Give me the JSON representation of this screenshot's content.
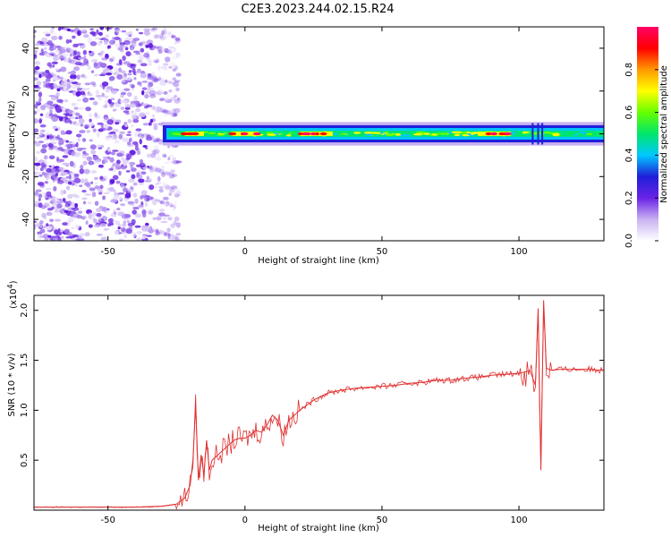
{
  "page_title": "C2E3.2023.244.02.15.R24",
  "chart_data": [
    {
      "type": "heatmap",
      "name": "spectrogram",
      "xlabel": "Height of straight line (km)",
      "ylabel": "Frequency (Hz)",
      "xlim": [
        -77,
        131
      ],
      "ylim": [
        -50,
        50
      ],
      "xticks": [
        -50,
        0,
        50,
        100
      ],
      "yticks": [
        -40,
        -20,
        0,
        20,
        40
      ],
      "colorbar": {
        "label": "Normalized spectral amplitude",
        "range": [
          0.0,
          1.0
        ],
        "ticks": [
          0.0,
          0.2,
          0.4,
          0.6,
          0.8
        ],
        "colormap": [
          "#ffffff",
          "#c9b2f2",
          "#6a22e6",
          "#1f1fd9",
          "#00c8ff",
          "#00e66b",
          "#66ff00",
          "#ffff00",
          "#ff9900",
          "#ff0000",
          "#ff0066"
        ]
      },
      "features": {
        "noise_region_km": [
          -77,
          -28
        ],
        "carrier_band_hz": [
          -3,
          3
        ],
        "peak_segments_km": [
          [
            -22,
            -15
          ],
          [
            -5,
            5
          ],
          [
            20,
            32
          ],
          [
            85,
            97
          ]
        ]
      },
      "grid": false
    },
    {
      "type": "line",
      "name": "snr",
      "xlabel": "Height of straight line (km)",
      "ylabel": "SNR (10 * v/v)",
      "yscale_label": "(x10",
      "yscale_exp": "4",
      "xlim": [
        -77,
        131
      ],
      "ylim": [
        0,
        2.15
      ],
      "xticks": [
        -50,
        0,
        50,
        100
      ],
      "yticks": [
        0.5,
        1.0,
        1.5,
        2.0
      ],
      "ytick_labels": [
        "0.5",
        "1.0",
        "1.5",
        "2.0"
      ],
      "color": "#e03030",
      "series": [
        {
          "x": [
            -77,
            -60,
            -40,
            -30,
            -25,
            -22,
            -20,
            -19,
            -18,
            -17,
            -16,
            -15,
            -14,
            -13,
            -12,
            -10,
            -8,
            -6,
            -4,
            -2,
            0,
            2,
            4,
            6,
            8,
            10,
            12,
            14,
            15,
            16,
            18,
            20,
            25,
            30,
            35,
            40,
            45,
            50,
            55,
            60,
            65,
            70,
            75,
            80,
            85,
            90,
            95,
            100,
            102,
            104,
            106,
            107,
            108,
            109,
            110,
            112,
            115,
            120,
            125,
            131
          ],
          "y": [
            0.03,
            0.03,
            0.03,
            0.04,
            0.06,
            0.12,
            0.25,
            0.5,
            1.05,
            0.3,
            0.55,
            0.35,
            0.7,
            0.4,
            0.5,
            0.55,
            0.6,
            0.65,
            0.7,
            0.72,
            0.72,
            0.75,
            0.8,
            0.78,
            0.85,
            0.95,
            0.9,
            0.75,
            0.82,
            0.9,
            0.95,
            1.0,
            1.1,
            1.17,
            1.2,
            1.22,
            1.23,
            1.24,
            1.25,
            1.27,
            1.28,
            1.3,
            1.3,
            1.32,
            1.33,
            1.35,
            1.36,
            1.37,
            1.38,
            1.4,
            1.25,
            2.02,
            0.4,
            2.1,
            1.42,
            1.4,
            1.41,
            1.41,
            1.41,
            1.4
          ]
        }
      ],
      "grid": false
    }
  ]
}
